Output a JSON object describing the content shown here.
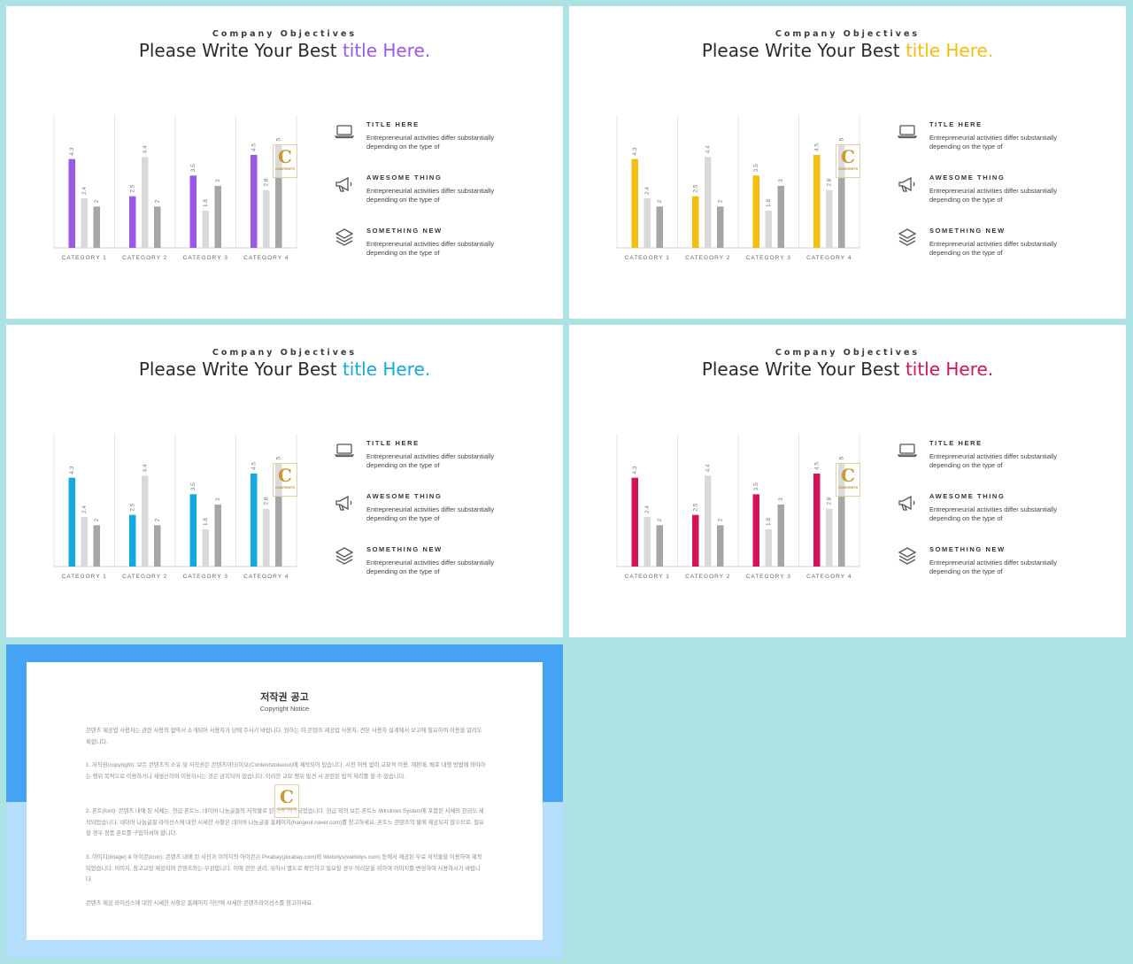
{
  "slides": [
    {
      "subtitle": "Company Objectives",
      "title_main": "Please Write Your Best ",
      "title_accent": "title Here.",
      "accent_color": "#9b59e8"
    },
    {
      "subtitle": "Company Objectives",
      "title_main": "Please Write Your Best ",
      "title_accent": "title Here.",
      "accent_color": "#f5bd0f"
    },
    {
      "subtitle": "Company Objectives",
      "title_main": "Please Write Your Best ",
      "title_accent": "title Here.",
      "accent_color": "#13a9e0"
    },
    {
      "subtitle": "Company Objectives",
      "title_main": "Please Write Your Best ",
      "title_accent": "title Here.",
      "accent_color": "#d4145a"
    }
  ],
  "features": [
    {
      "icon": "laptop-icon",
      "title": "TITLE HERE",
      "desc": "Entrepreneurial activities differ substantially depending on the type of"
    },
    {
      "icon": "megaphone-icon",
      "title": "AWESOME THING",
      "desc": "Entrepreneurial activities differ substantially depending on the type of"
    },
    {
      "icon": "layers-icon",
      "title": "SOMETHING NEW",
      "desc": "Entrepreneurial activities differ substantially depending on the type of"
    }
  ],
  "watermark": {
    "letter": "C",
    "text": "CONTENTS"
  },
  "chart_data": {
    "type": "bar",
    "categories": [
      "CATEGORY 1",
      "CATEGORY 2",
      "CATEGORY 3",
      "CATEGORY 4"
    ],
    "series": [
      {
        "values": [
          4.3,
          2.5,
          3.5,
          4.5
        ],
        "color": "accent"
      },
      {
        "values": [
          2.4,
          4.4,
          1.8,
          2.8
        ],
        "color": "#d9d9d9"
      },
      {
        "values": [
          2,
          2,
          3,
          5
        ],
        "color": "#a6a6a6"
      }
    ],
    "ylim": [
      0,
      6
    ],
    "grid": "vertical",
    "legend": "none"
  },
  "notice": {
    "title": "저작권 공고",
    "subtitle": "Copyright Notice",
    "paragraphs": [
      "콘텐츠 제공업 사용자는 관련 사용의 협약서 소개되어 사용자가 당에 주시기 바랍니다. 원하는 이 콘텐츠 제공업 사용자, 견본 사용자 설계에서 보고에 필요하여 이용을 알리도록합니다.",
      "1. 저작권(copyright): 보든 콘텐츠의 소유 및 저작권은 콘텐츠이터/이오(Contentstokeout)에 제작되어 있습니다. 시전 허락 없이 교묘적 이용, 재판매, 배포 대행 방법에 와야하는 행위 목적으로 이용하거나 재생산하여 이용하시는 것은 금지되어 있습니다. 이러한 교묘 행위 발견 시 관련된 법적 처리를 할 수 있습니다.",
      "2. 폰트(font): 콘텐츠 내에 된 서체는, 현급 폰트느, 네이버 나눔글꼴의 저작물로 된 아에 제작되었습니다. 현급 외의 보든 폰트느 Windows System에 포함된 서체의 관금도 세작되었습니다. 네이버 나눔글꼴 라이선스에 대한 시세한 사항은 네이버 나눔글꼴 홈페이지(hangeul.naver.com)를 참고하세요. 폰트느 콘텐츠의 팔에 제공되지 않으므로, 필요할 경우 정품 폰트를 구입하셔야 합니다.",
      "3. 이미지(image) & 아이콘(icon): 콘텐츠 내에 된 사진과 이미지의 아이콘은 Pixabay(pixabay.com)와 Webolys(webolys.com) 등에서 제공된 무료 저작물을 이용하여 제작되었습니다. 이미지, 참고교양 제공되며 콘텐츠와는 무관합니다. 이에 관한 권리, 위하시 별도로 확인하고 필요할 경우 여러분을 위하여 이미지를 변경하여 사용하시기 바랍니다.",
      "콘텐츠 제공 라이선스에 대한 시세한 사항은 홈페이지 하단에 시세한 콘텐츠라이선스를 참고하세요."
    ]
  }
}
